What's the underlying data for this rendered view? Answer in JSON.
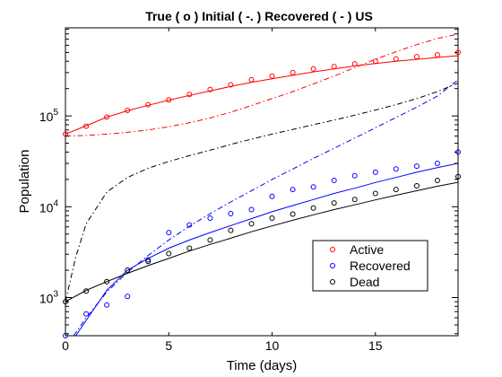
{
  "chart_data": {
    "type": "line",
    "title": "True ( o ) Initial ( -. ) Recovered ( - ) US",
    "xlabel": "Time (days)",
    "ylabel": "Population",
    "xlim": [
      0,
      19
    ],
    "ylim_log10": [
      2.58,
      5.97
    ],
    "y_scale": "log",
    "grid": false,
    "legend_placement": "bottom-right",
    "x_ticks": [
      0,
      5,
      10,
      15
    ],
    "x_tick_labels": [
      "0",
      "5",
      "10",
      "15"
    ],
    "y_ticks": [
      1000,
      10000,
      100000
    ],
    "y_tick_labels": [
      {
        "base": "10",
        "exp": "3"
      },
      {
        "base": "10",
        "exp": "4"
      },
      {
        "base": "10",
        "exp": "5"
      }
    ],
    "colors": {
      "active": "#ff0000",
      "recovered": "#0000ff",
      "dead": "#000000"
    },
    "legend": [
      {
        "label": "Active",
        "color": "#ff0000"
      },
      {
        "label": "Recovered",
        "color": "#0000ff"
      },
      {
        "label": "Dead",
        "color": "#000000"
      }
    ],
    "true_points": [
      {
        "color": "#ff0000",
        "x": [
          0,
          1,
          2,
          3,
          4,
          5,
          6,
          7,
          8,
          9,
          10,
          11,
          12,
          13,
          14,
          15,
          16,
          17,
          18,
          19
        ],
        "y": [
          63000,
          77000,
          97000,
          115000,
          133000,
          150000,
          172000,
          195000,
          220000,
          250000,
          275000,
          300000,
          330000,
          350000,
          375000,
          400000,
          425000,
          450000,
          470000,
          500000
        ]
      },
      {
        "color": "#0000ff",
        "x": [
          0,
          1,
          2,
          3,
          4,
          5,
          6,
          7,
          8,
          9,
          10,
          11,
          12,
          13,
          14,
          15,
          16,
          17,
          18,
          19
        ],
        "y": [
          380,
          660,
          830,
          1030,
          2600,
          5200,
          6300,
          7500,
          8400,
          9300,
          13000,
          15500,
          16500,
          19500,
          22000,
          24000,
          26000,
          28000,
          30000,
          40000
        ]
      },
      {
        "color": "#000000",
        "x": [
          0,
          1,
          2,
          3,
          4,
          5,
          6,
          7,
          8,
          9,
          10,
          11,
          12,
          13,
          14,
          15,
          16,
          17,
          18,
          19
        ],
        "y": [
          900,
          1180,
          1500,
          2000,
          2500,
          3050,
          3500,
          4300,
          5500,
          6500,
          7500,
          8300,
          9700,
          11000,
          12000,
          14000,
          15500,
          17000,
          19500,
          21500
        ]
      }
    ],
    "initial_curves": [
      {
        "color": "#ff0000",
        "x": [
          0,
          1,
          2,
          3,
          4,
          5,
          6,
          7,
          8,
          9,
          10,
          11,
          12,
          13,
          14,
          15,
          16,
          17,
          18,
          19
        ],
        "y": [
          60000,
          61000,
          63000,
          66000,
          70000,
          76000,
          84000,
          95000,
          110000,
          130000,
          155000,
          185000,
          225000,
          275000,
          340000,
          420000,
          510000,
          610000,
          710000,
          800000
        ]
      },
      {
        "color": "#0000ff",
        "x": [
          0.4,
          1,
          2,
          3,
          4,
          5,
          6,
          7,
          8,
          9,
          10,
          11,
          12,
          13,
          14,
          15,
          16,
          17,
          18,
          19
        ],
        "y": [
          380,
          600,
          1150,
          1900,
          2900,
          4300,
          6100,
          8400,
          11300,
          15000,
          20000,
          26000,
          34000,
          44000,
          57000,
          74000,
          96000,
          125000,
          165000,
          250000
        ]
      },
      {
        "color": "#000000",
        "x": [
          0,
          0.5,
          1,
          2,
          3,
          4,
          5,
          6,
          7,
          8,
          9,
          10,
          11,
          12,
          13,
          14,
          15,
          16,
          17,
          18,
          19
        ],
        "y": [
          900,
          2800,
          6500,
          14500,
          21000,
          26500,
          31500,
          36500,
          42000,
          48500,
          55500,
          63000,
          71000,
          80000,
          90000,
          102000,
          116000,
          133000,
          155000,
          185000,
          230000
        ]
      }
    ],
    "recovered_curves": [
      {
        "color": "#ff0000",
        "x": [
          0,
          1,
          2,
          3,
          4,
          5,
          6,
          7,
          8,
          9,
          10,
          11,
          12,
          13,
          14,
          15,
          16,
          17,
          18,
          19
        ],
        "y": [
          63000,
          78000,
          97000,
          114000,
          131000,
          149000,
          168000,
          189000,
          211000,
          234000,
          257000,
          280000,
          305000,
          330000,
          355000,
          378000,
          400000,
          420000,
          440000,
          460000
        ]
      },
      {
        "color": "#0000ff",
        "x": [
          0.5,
          1,
          2,
          3,
          4,
          5,
          6,
          7,
          8,
          9,
          10,
          11,
          12,
          13,
          14,
          15,
          16,
          17,
          18,
          19
        ],
        "y": [
          380,
          560,
          1200,
          2000,
          2700,
          3500,
          4300,
          5200,
          6200,
          7400,
          8800,
          10300,
          12000,
          14000,
          16000,
          18500,
          21000,
          24000,
          27000,
          30000
        ]
      },
      {
        "color": "#000000",
        "x": [
          0,
          1,
          2,
          3,
          4,
          5,
          6,
          7,
          8,
          9,
          10,
          11,
          12,
          13,
          14,
          15,
          16,
          17,
          18,
          19
        ],
        "y": [
          900,
          1200,
          1500,
          1850,
          2250,
          2700,
          3250,
          3850,
          4500,
          5300,
          6150,
          7100,
          8150,
          9300,
          10500,
          11900,
          13400,
          15000,
          16800,
          18600
        ]
      }
    ]
  }
}
